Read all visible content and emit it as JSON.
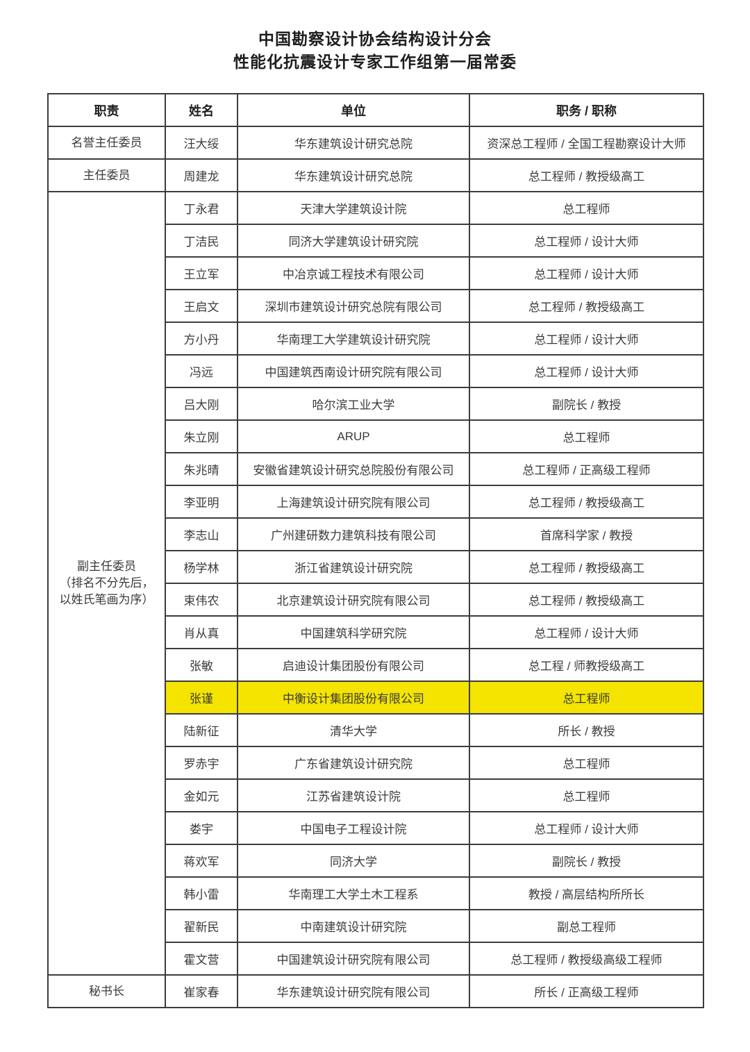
{
  "title": {
    "line1": "中国勘察设计协会结构设计分会",
    "line2": "性能化抗震设计专家工作组第一届常委"
  },
  "table": {
    "headers": [
      "职责",
      "姓名",
      "单位",
      "职务 / 职称"
    ],
    "highlight_color": "#F4E400",
    "groups": [
      {
        "role_lines": [
          "名誉主任委员"
        ],
        "members": [
          {
            "name": "汪大绥",
            "org": "华东建筑设计研究总院",
            "title": "资深总工程师 / 全国工程勘察设计大师"
          }
        ]
      },
      {
        "role_lines": [
          "主任委员"
        ],
        "members": [
          {
            "name": "周建龙",
            "org": "华东建筑设计研究总院",
            "title": "总工程师 / 教授级高工"
          }
        ]
      },
      {
        "role_lines": [
          "副主任委员",
          "（排名不分先后，",
          "以姓氏笔画为序）"
        ],
        "members": [
          {
            "name": "丁永君",
            "org": "天津大学建筑设计院",
            "title": "总工程师"
          },
          {
            "name": "丁洁民",
            "org": "同济大学建筑设计研究院",
            "title": "总工程师 / 设计大师"
          },
          {
            "name": "王立军",
            "org": "中冶京诚工程技术有限公司",
            "title": "总工程师 / 设计大师"
          },
          {
            "name": "王启文",
            "org": "深圳市建筑设计研究总院有限公司",
            "title": "总工程师 / 教授级高工"
          },
          {
            "name": "方小丹",
            "org": "华南理工大学建筑设计研究院",
            "title": "总工程师 / 设计大师"
          },
          {
            "name": "冯远",
            "org": "中国建筑西南设计研究院有限公司",
            "title": "总工程师 / 设计大师"
          },
          {
            "name": "吕大刚",
            "org": "哈尔滨工业大学",
            "title": "副院长 / 教授"
          },
          {
            "name": "朱立刚",
            "org": "ARUP",
            "title": "总工程师"
          },
          {
            "name": "朱兆晴",
            "org": "安徽省建筑设计研究总院股份有限公司",
            "title": "总工程师 / 正高级工程师"
          },
          {
            "name": "李亚明",
            "org": "上海建筑设计研究院有限公司",
            "title": "总工程师 / 教授级高工"
          },
          {
            "name": "李志山",
            "org": "广州建研数力建筑科技有限公司",
            "title": "首席科学家 / 教授"
          },
          {
            "name": "杨学林",
            "org": "浙江省建筑设计研究院",
            "title": "总工程师 / 教授级高工"
          },
          {
            "name": "束伟农",
            "org": "北京建筑设计研究院有限公司",
            "title": "总工程师 / 教授级高工"
          },
          {
            "name": "肖从真",
            "org": "中国建筑科学研究院",
            "title": "总工程师 / 设计大师"
          },
          {
            "name": "张敏",
            "org": "启迪设计集团股份有限公司",
            "title": "总工程 / 师教授级高工"
          },
          {
            "name": "张谨",
            "org": "中衡设计集团股份有限公司",
            "title": "总工程师",
            "highlight": true
          },
          {
            "name": "陆新征",
            "org": "清华大学",
            "title": "所长 / 教授"
          },
          {
            "name": "罗赤宇",
            "org": "广东省建筑设计研究院",
            "title": "总工程师"
          },
          {
            "name": "金如元",
            "org": "江苏省建筑设计院",
            "title": "总工程师"
          },
          {
            "name": "娄宇",
            "org": "中国电子工程设计院",
            "title": "总工程师 / 设计大师"
          },
          {
            "name": "蒋欢军",
            "org": "同济大学",
            "title": "副院长 / 教授"
          },
          {
            "name": "韩小雷",
            "org": "华南理工大学土木工程系",
            "title": "教授 / 高层结构所所长"
          },
          {
            "name": "翟新民",
            "org": "中南建筑设计研究院",
            "title": "副总工程师"
          },
          {
            "name": "霍文营",
            "org": "中国建筑设计研究院有限公司",
            "title": "总工程师 / 教授级高级工程师"
          }
        ]
      },
      {
        "role_lines": [
          "秘书长"
        ],
        "members": [
          {
            "name": "崔家春",
            "org": "华东建筑设计研究院有限公司",
            "title": "所长 / 正高级工程师"
          }
        ]
      }
    ]
  }
}
